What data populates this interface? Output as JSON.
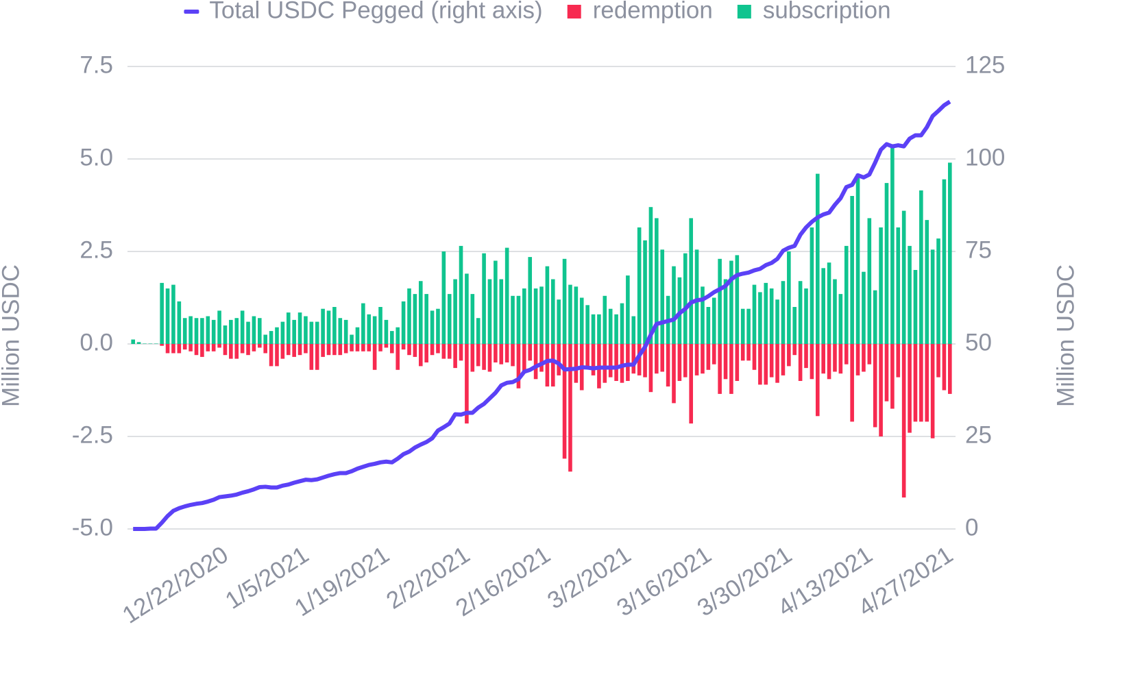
{
  "chart_data": {
    "type": "bar",
    "categories": [
      null,
      null,
      null,
      null,
      null,
      null,
      null,
      null,
      null,
      null,
      null,
      null,
      null,
      null,
      null,
      null,
      "12/22/2020",
      null,
      null,
      null,
      null,
      null,
      null,
      null,
      null,
      null,
      null,
      null,
      null,
      null,
      "1/5/2021",
      null,
      null,
      null,
      null,
      null,
      null,
      null,
      null,
      null,
      null,
      null,
      null,
      null,
      "1/19/2021",
      null,
      null,
      null,
      null,
      null,
      null,
      null,
      null,
      null,
      null,
      null,
      null,
      null,
      "2/2/2021",
      null,
      null,
      null,
      null,
      null,
      null,
      null,
      null,
      null,
      null,
      null,
      null,
      null,
      "2/16/2021",
      null,
      null,
      null,
      null,
      null,
      null,
      null,
      null,
      null,
      null,
      null,
      null,
      null,
      "3/2/2021",
      null,
      null,
      null,
      null,
      null,
      null,
      null,
      null,
      null,
      null,
      null,
      null,
      null,
      "3/16/2021",
      null,
      null,
      null,
      null,
      null,
      null,
      null,
      null,
      null,
      null,
      null,
      null,
      null,
      "3/30/2021",
      null,
      null,
      null,
      null,
      null,
      null,
      null,
      null,
      null,
      null,
      null,
      null,
      null,
      "4/13/2021",
      null,
      null,
      null,
      null,
      null,
      null,
      null,
      null,
      null,
      null,
      null,
      null,
      null,
      "4/27/2021"
    ],
    "series": [
      {
        "name": "Total USDC Pegged (right axis)",
        "type": "line",
        "axis": "y2",
        "color": "#5b41f6",
        "values": [
          0,
          0,
          0,
          0.1,
          0.1,
          1.7,
          3.5,
          4.9,
          5.6,
          6.1,
          6.5,
          6.8,
          7.0,
          7.4,
          7.9,
          8.6,
          8.8,
          9.0,
          9.3,
          9.8,
          10.2,
          10.7,
          11.3,
          11.4,
          11.2,
          11.2,
          11.7,
          12.0,
          12.5,
          12.9,
          13.3,
          13.2,
          13.4,
          13.9,
          14.4,
          14.8,
          15.1,
          15.1,
          15.6,
          16.3,
          16.8,
          17.3,
          17.6,
          18.0,
          18.2,
          18.0,
          19.0,
          20.2,
          20.9,
          22.0,
          22.8,
          23.5,
          24.5,
          26.6,
          27.5,
          28.5,
          31.0,
          30.9,
          31.4,
          31.4,
          32.8,
          33.8,
          35.3,
          36.8,
          38.8,
          39.5,
          39.7,
          40.5,
          42.5,
          43.0,
          43.9,
          44.6,
          45.4,
          45.5,
          44.7,
          43.1,
          43.2,
          43.3,
          43.7,
          43.6,
          43.4,
          43.6,
          43.6,
          43.6,
          43.6,
          44.1,
          44.4,
          44.4,
          46.9,
          49.2,
          52.5,
          55.4,
          55.8,
          56.2,
          56.6,
          58.3,
          59.5,
          61.2,
          61.8,
          62.0,
          62.9,
          64.0,
          64.8,
          65.7,
          67.5,
          68.6,
          69.0,
          69.3,
          69.9,
          70.3,
          71.3,
          71.9,
          73.0,
          75.2,
          76.0,
          76.5,
          79.5,
          81.5,
          83.0,
          84.2,
          85.0,
          85.5,
          87.6,
          89.4,
          92.4,
          93.0,
          95.6,
          95.0,
          95.8,
          99.0,
          102.5,
          104.0,
          103.4,
          103.7,
          103.4,
          105.5,
          106.4,
          106.4,
          108.6,
          111.6,
          113.0,
          114.5,
          115.5
        ]
      },
      {
        "name": "redemption",
        "type": "bar",
        "color": "#f72a50",
        "values": [
          0,
          0,
          0,
          0,
          0,
          -0.05,
          -0.25,
          -0.25,
          -0.25,
          -0.15,
          -0.2,
          -0.3,
          -0.35,
          -0.2,
          -0.2,
          -0.1,
          -0.3,
          -0.4,
          -0.4,
          -0.25,
          -0.3,
          -0.2,
          -0.1,
          -0.25,
          -0.6,
          -0.6,
          -0.4,
          -0.3,
          -0.35,
          -0.3,
          -0.25,
          -0.7,
          -0.7,
          -0.35,
          -0.3,
          -0.3,
          -0.3,
          -0.25,
          -0.2,
          -0.2,
          -0.2,
          -0.2,
          -0.7,
          -0.2,
          -0.1,
          -0.25,
          -0.7,
          -0.15,
          -0.3,
          -0.35,
          -0.6,
          -0.5,
          -0.3,
          -0.25,
          -0.4,
          -0.4,
          -0.65,
          -0.45,
          -2.15,
          -0.75,
          -0.6,
          -0.7,
          -0.75,
          -0.5,
          -0.55,
          -0.5,
          -0.6,
          -1.2,
          -0.75,
          -0.45,
          -0.95,
          -0.75,
          -1.15,
          -1.15,
          -0.85,
          -3.1,
          -3.45,
          -1.05,
          -1.25,
          -0.65,
          -0.85,
          -1.2,
          -1.05,
          -0.9,
          -1.0,
          -1.05,
          -1.0,
          -0.8,
          -0.85,
          -0.9,
          -1.3,
          -0.8,
          -0.75,
          -1.15,
          -1.6,
          -1.0,
          -0.9,
          -2.15,
          -0.85,
          -0.8,
          -0.7,
          -0.55,
          -1.35,
          -0.95,
          -1.35,
          -1.0,
          -0.45,
          -0.45,
          -0.7,
          -1.1,
          -1.1,
          -0.9,
          -1.05,
          -0.85,
          -0.6,
          -0.3,
          -1.0,
          -0.65,
          -0.95,
          -1.95,
          -0.8,
          -0.95,
          -0.75,
          -0.8,
          -0.55,
          -2.1,
          -0.85,
          -0.75,
          -0.55,
          -2.25,
          -2.5,
          -1.55,
          -1.75,
          -0.9,
          -4.15,
          -2.4,
          -2.1,
          -2.1,
          -2.1,
          -2.55,
          -0.9,
          -1.25,
          -1.35
        ]
      },
      {
        "name": "subscription",
        "type": "bar",
        "color": "#10c48f",
        "values": [
          0.12,
          0.05,
          0.01,
          0.01,
          0.01,
          1.65,
          1.5,
          1.6,
          1.15,
          0.7,
          0.75,
          0.7,
          0.7,
          0.75,
          0.65,
          0.9,
          0.5,
          0.65,
          0.7,
          0.9,
          0.6,
          0.75,
          0.7,
          0.25,
          0.35,
          0.45,
          0.6,
          0.85,
          0.65,
          0.85,
          0.75,
          0.6,
          0.6,
          0.95,
          0.9,
          1.0,
          0.7,
          0.65,
          0.25,
          0.45,
          1.1,
          0.8,
          0.75,
          1.0,
          0.65,
          0.35,
          0.45,
          1.15,
          1.5,
          1.35,
          1.7,
          1.35,
          0.9,
          0.95,
          2.5,
          1.35,
          1.75,
          2.65,
          1.9,
          1.35,
          0.7,
          2.45,
          1.75,
          2.25,
          1.75,
          2.6,
          1.3,
          1.3,
          1.5,
          2.35,
          1.5,
          1.55,
          2.1,
          1.75,
          1.2,
          2.3,
          1.6,
          1.55,
          1.25,
          1.05,
          0.8,
          0.8,
          1.3,
          0.95,
          0.8,
          1.1,
          1.85,
          0.75,
          3.15,
          2.8,
          3.7,
          3.4,
          2.55,
          1.3,
          2.1,
          1.8,
          2.45,
          3.4,
          2.55,
          1.55,
          1.0,
          1.25,
          2.3,
          1.75,
          2.25,
          2.4,
          0.95,
          0.95,
          1.6,
          1.4,
          1.65,
          1.5,
          1.2,
          1.7,
          2.5,
          1.0,
          1.7,
          1.5,
          3.15,
          4.6,
          2.05,
          2.2,
          1.75,
          1.35,
          2.65,
          4.0,
          4.6,
          1.95,
          3.4,
          1.45,
          3.15,
          4.35,
          5.4,
          3.15,
          3.6,
          2.65,
          2.0,
          4.15,
          3.35,
          2.55,
          2.85,
          4.45,
          4.9
        ]
      }
    ],
    "y_label": "Million USDC",
    "y2_label": "Million USDC",
    "ylim": [
      -5,
      7.5
    ],
    "yticks": [
      {
        "value": -5,
        "label": "-5.0"
      },
      -2.5,
      {
        "value": 0,
        "label": "0.0"
      },
      2.5,
      {
        "value": 5,
        "label": "5.0"
      },
      7.5
    ],
    "y2lim": [
      0,
      125
    ],
    "y2ticks": [
      0,
      25,
      50,
      75,
      100,
      125
    ],
    "grid": true,
    "legend": "top"
  }
}
